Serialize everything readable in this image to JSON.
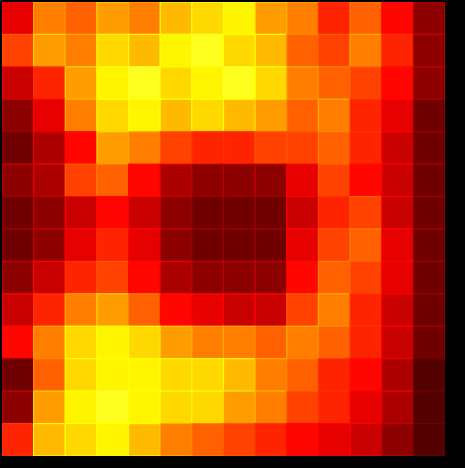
{
  "chart_data": {
    "type": "heatmap",
    "tick_labels": false,
    "color": "hot",
    "values": [
      [
        30,
        55,
        50,
        60,
        55,
        65,
        70,
        75,
        60,
        55,
        40,
        50,
        35,
        15
      ],
      [
        45,
        60,
        55,
        70,
        65,
        75,
        80,
        70,
        65,
        50,
        45,
        55,
        40,
        15
      ],
      [
        25,
        40,
        60,
        75,
        80,
        70,
        75,
        80,
        70,
        55,
        50,
        45,
        35,
        15
      ],
      [
        15,
        30,
        55,
        70,
        75,
        65,
        70,
        65,
        60,
        50,
        55,
        40,
        30,
        10
      ],
      [
        10,
        20,
        35,
        60,
        55,
        45,
        40,
        40,
        45,
        45,
        50,
        40,
        25,
        10
      ],
      [
        15,
        20,
        45,
        50,
        35,
        20,
        15,
        15,
        15,
        30,
        45,
        35,
        25,
        10
      ],
      [
        10,
        15,
        25,
        35,
        25,
        15,
        10,
        10,
        10,
        25,
        40,
        45,
        25,
        10
      ],
      [
        10,
        15,
        30,
        40,
        30,
        15,
        10,
        10,
        10,
        30,
        45,
        50,
        30,
        10
      ],
      [
        15,
        25,
        40,
        45,
        35,
        20,
        15,
        15,
        15,
        35,
        50,
        45,
        30,
        10
      ],
      [
        25,
        40,
        55,
        60,
        50,
        35,
        30,
        25,
        25,
        45,
        55,
        40,
        25,
        10
      ],
      [
        35,
        55,
        70,
        75,
        70,
        60,
        55,
        55,
        50,
        55,
        50,
        40,
        25,
        10
      ],
      [
        10,
        50,
        70,
        75,
        75,
        70,
        70,
        65,
        55,
        50,
        40,
        35,
        20,
        5
      ],
      [
        15,
        60,
        75,
        80,
        75,
        70,
        70,
        60,
        55,
        45,
        40,
        30,
        20,
        5
      ],
      [
        40,
        65,
        70,
        75,
        65,
        55,
        50,
        45,
        40,
        35,
        30,
        25,
        15,
        5
      ]
    ]
  }
}
